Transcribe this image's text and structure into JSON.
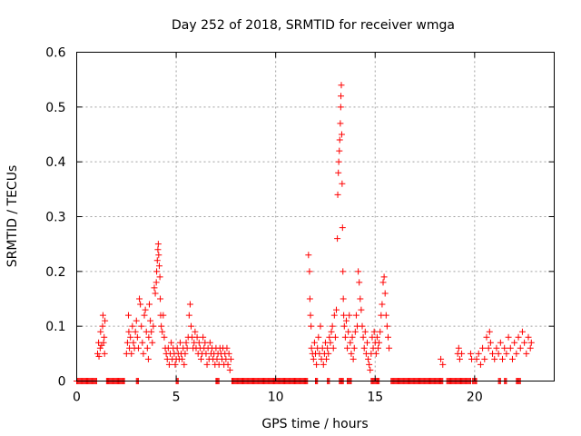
{
  "chart_data": {
    "type": "scatter",
    "title": "Day 252 of 2018, SRMTID for receiver wmga",
    "xlabel": "GPS time / hours",
    "ylabel": "SRMTID / TECUs",
    "xlim": [
      0,
      24
    ],
    "ylim": [
      0,
      0.6
    ],
    "xticks": [
      0,
      5,
      10,
      15,
      20
    ],
    "yticks": [
      0,
      0.1,
      0.2,
      0.3,
      0.4,
      0.5,
      0.6
    ],
    "xtick_labels": [
      "0",
      "5",
      "10",
      "15",
      "20"
    ],
    "ytick_labels": [
      "0",
      "0.1",
      "0.2",
      "0.3",
      "0.4",
      "0.5",
      "0.6"
    ],
    "grid": true,
    "marker": "+",
    "color": "#ff0000",
    "series": [
      {
        "name": "SRMTID",
        "zero_segments": [
          [
            0.0,
            1.0
          ],
          [
            1.5,
            2.4
          ],
          [
            3.0,
            3.1
          ],
          [
            5.0,
            5.1
          ],
          [
            7.0,
            7.15
          ],
          [
            7.8,
            11.6
          ],
          [
            12.0,
            12.1
          ],
          [
            12.6,
            12.7
          ],
          [
            13.2,
            13.4
          ],
          [
            13.6,
            13.8
          ],
          [
            14.8,
            15.2
          ],
          [
            15.8,
            18.4
          ],
          [
            18.6,
            19.8
          ],
          [
            19.9,
            20.1
          ],
          [
            21.2,
            21.3
          ],
          [
            21.5,
            21.6
          ],
          [
            22.1,
            22.3
          ]
        ],
        "points": [
          [
            1.05,
            0.05
          ],
          [
            1.1,
            0.07
          ],
          [
            1.12,
            0.045
          ],
          [
            1.18,
            0.06
          ],
          [
            1.2,
            0.09
          ],
          [
            1.25,
            0.065
          ],
          [
            1.3,
            0.1
          ],
          [
            1.32,
            0.12
          ],
          [
            1.35,
            0.07
          ],
          [
            1.38,
            0.08
          ],
          [
            1.4,
            0.05
          ],
          [
            1.42,
            0.11
          ],
          [
            2.5,
            0.05
          ],
          [
            2.55,
            0.07
          ],
          [
            2.6,
            0.12
          ],
          [
            2.62,
            0.09
          ],
          [
            2.65,
            0.06
          ],
          [
            2.7,
            0.08
          ],
          [
            2.75,
            0.05
          ],
          [
            2.8,
            0.1
          ],
          [
            2.85,
            0.07
          ],
          [
            2.9,
            0.06
          ],
          [
            2.95,
            0.09
          ],
          [
            3.0,
            0.11
          ],
          [
            3.05,
            0.08
          ],
          [
            3.1,
            0.06
          ],
          [
            3.15,
            0.15
          ],
          [
            3.2,
            0.14
          ],
          [
            3.25,
            0.1
          ],
          [
            3.3,
            0.07
          ],
          [
            3.35,
            0.05
          ],
          [
            3.4,
            0.12
          ],
          [
            3.45,
            0.13
          ],
          [
            3.5,
            0.09
          ],
          [
            3.55,
            0.06
          ],
          [
            3.6,
            0.04
          ],
          [
            3.62,
            0.08
          ],
          [
            3.65,
            0.14
          ],
          [
            3.7,
            0.11
          ],
          [
            3.75,
            0.09
          ],
          [
            3.8,
            0.07
          ],
          [
            3.85,
            0.1
          ],
          [
            3.9,
            0.17
          ],
          [
            3.95,
            0.16
          ],
          [
            4.0,
            0.18
          ],
          [
            4.02,
            0.2
          ],
          [
            4.05,
            0.22
          ],
          [
            4.08,
            0.24
          ],
          [
            4.1,
            0.25
          ],
          [
            4.12,
            0.23
          ],
          [
            4.15,
            0.21
          ],
          [
            4.18,
            0.19
          ],
          [
            4.2,
            0.15
          ],
          [
            4.22,
            0.12
          ],
          [
            4.25,
            0.1
          ],
          [
            4.3,
            0.09
          ],
          [
            4.35,
            0.12
          ],
          [
            4.4,
            0.08
          ],
          [
            4.45,
            0.06
          ],
          [
            4.5,
            0.05
          ],
          [
            4.55,
            0.04
          ],
          [
            4.6,
            0.06
          ],
          [
            4.65,
            0.03
          ],
          [
            4.7,
            0.05
          ],
          [
            4.75,
            0.07
          ],
          [
            4.8,
            0.04
          ],
          [
            4.85,
            0.06
          ],
          [
            4.9,
            0.05
          ],
          [
            4.95,
            0.03
          ],
          [
            5.0,
            0.04
          ],
          [
            5.05,
            0.06
          ],
          [
            5.1,
            0.05
          ],
          [
            5.15,
            0.04
          ],
          [
            5.2,
            0.07
          ],
          [
            5.25,
            0.05
          ],
          [
            5.3,
            0.04
          ],
          [
            5.35,
            0.06
          ],
          [
            5.4,
            0.03
          ],
          [
            5.45,
            0.05
          ],
          [
            5.5,
            0.07
          ],
          [
            5.55,
            0.06
          ],
          [
            5.6,
            0.08
          ],
          [
            5.65,
            0.12
          ],
          [
            5.7,
            0.14
          ],
          [
            5.75,
            0.1
          ],
          [
            5.8,
            0.08
          ],
          [
            5.85,
            0.06
          ],
          [
            5.9,
            0.07
          ],
          [
            5.95,
            0.09
          ],
          [
            6.0,
            0.06
          ],
          [
            6.05,
            0.08
          ],
          [
            6.1,
            0.05
          ],
          [
            6.15,
            0.07
          ],
          [
            6.2,
            0.06
          ],
          [
            6.25,
            0.04
          ],
          [
            6.3,
            0.05
          ],
          [
            6.35,
            0.08
          ],
          [
            6.4,
            0.06
          ],
          [
            6.45,
            0.07
          ],
          [
            6.5,
            0.05
          ],
          [
            6.55,
            0.03
          ],
          [
            6.6,
            0.06
          ],
          [
            6.65,
            0.04
          ],
          [
            6.7,
            0.07
          ],
          [
            6.75,
            0.05
          ],
          [
            6.8,
            0.06
          ],
          [
            6.85,
            0.04
          ],
          [
            6.9,
            0.05
          ],
          [
            6.95,
            0.03
          ],
          [
            7.0,
            0.06
          ],
          [
            7.05,
            0.04
          ],
          [
            7.1,
            0.05
          ],
          [
            7.15,
            0.03
          ],
          [
            7.2,
            0.06
          ],
          [
            7.25,
            0.05
          ],
          [
            7.3,
            0.04
          ],
          [
            7.35,
            0.06
          ],
          [
            7.4,
            0.03
          ],
          [
            7.45,
            0.05
          ],
          [
            7.5,
            0.04
          ],
          [
            7.55,
            0.06
          ],
          [
            7.6,
            0.03
          ],
          [
            7.65,
            0.05
          ],
          [
            7.7,
            0.02
          ],
          [
            7.75,
            0.04
          ],
          [
            11.65,
            0.23
          ],
          [
            11.7,
            0.2
          ],
          [
            11.72,
            0.15
          ],
          [
            11.75,
            0.12
          ],
          [
            11.78,
            0.1
          ],
          [
            11.8,
            0.06
          ],
          [
            11.85,
            0.05
          ],
          [
            11.9,
            0.04
          ],
          [
            11.95,
            0.07
          ],
          [
            12.0,
            0.05
          ],
          [
            12.05,
            0.03
          ],
          [
            12.1,
            0.06
          ],
          [
            12.15,
            0.08
          ],
          [
            12.2,
            0.05
          ],
          [
            12.25,
            0.1
          ],
          [
            12.3,
            0.04
          ],
          [
            12.35,
            0.06
          ],
          [
            12.4,
            0.03
          ],
          [
            12.45,
            0.05
          ],
          [
            12.5,
            0.07
          ],
          [
            12.55,
            0.04
          ],
          [
            12.6,
            0.06
          ],
          [
            12.65,
            0.05
          ],
          [
            12.7,
            0.08
          ],
          [
            12.75,
            0.07
          ],
          [
            12.8,
            0.09
          ],
          [
            12.85,
            0.1
          ],
          [
            12.9,
            0.06
          ],
          [
            12.95,
            0.12
          ],
          [
            13.0,
            0.08
          ],
          [
            13.05,
            0.13
          ],
          [
            13.1,
            0.26
          ],
          [
            13.12,
            0.34
          ],
          [
            13.15,
            0.38
          ],
          [
            13.17,
            0.4
          ],
          [
            13.2,
            0.42
          ],
          [
            13.22,
            0.44
          ],
          [
            13.25,
            0.47
          ],
          [
            13.27,
            0.5
          ],
          [
            13.28,
            0.52
          ],
          [
            13.3,
            0.54
          ],
          [
            13.32,
            0.45
          ],
          [
            13.34,
            0.36
          ],
          [
            13.36,
            0.28
          ],
          [
            13.38,
            0.2
          ],
          [
            13.4,
            0.15
          ],
          [
            13.42,
            0.12
          ],
          [
            13.45,
            0.1
          ],
          [
            13.5,
            0.08
          ],
          [
            13.55,
            0.11
          ],
          [
            13.6,
            0.06
          ],
          [
            13.65,
            0.09
          ],
          [
            13.7,
            0.12
          ],
          [
            13.75,
            0.07
          ],
          [
            13.8,
            0.05
          ],
          [
            13.85,
            0.08
          ],
          [
            13.9,
            0.04
          ],
          [
            13.95,
            0.06
          ],
          [
            14.0,
            0.09
          ],
          [
            14.05,
            0.12
          ],
          [
            14.1,
            0.1
          ],
          [
            14.15,
            0.2
          ],
          [
            14.2,
            0.18
          ],
          [
            14.25,
            0.15
          ],
          [
            14.3,
            0.13
          ],
          [
            14.35,
            0.1
          ],
          [
            14.4,
            0.08
          ],
          [
            14.45,
            0.06
          ],
          [
            14.5,
            0.09
          ],
          [
            14.55,
            0.05
          ],
          [
            14.6,
            0.07
          ],
          [
            14.65,
            0.04
          ],
          [
            14.7,
            0.03
          ],
          [
            14.75,
            0.02
          ],
          [
            14.8,
            0.05
          ],
          [
            14.85,
            0.08
          ],
          [
            14.9,
            0.06
          ],
          [
            14.95,
            0.09
          ],
          [
            15.0,
            0.07
          ],
          [
            15.05,
            0.05
          ],
          [
            15.1,
            0.08
          ],
          [
            15.15,
            0.06
          ],
          [
            15.2,
            0.07
          ],
          [
            15.25,
            0.09
          ],
          [
            15.3,
            0.12
          ],
          [
            15.35,
            0.14
          ],
          [
            15.4,
            0.18
          ],
          [
            15.45,
            0.19
          ],
          [
            15.5,
            0.16
          ],
          [
            15.55,
            0.12
          ],
          [
            15.6,
            0.1
          ],
          [
            15.65,
            0.08
          ],
          [
            15.7,
            0.06
          ],
          [
            18.3,
            0.04
          ],
          [
            18.4,
            0.03
          ],
          [
            19.15,
            0.05
          ],
          [
            19.2,
            0.06
          ],
          [
            19.25,
            0.04
          ],
          [
            19.35,
            0.05
          ],
          [
            19.8,
            0.05
          ],
          [
            19.85,
            0.04
          ],
          [
            20.1,
            0.04
          ],
          [
            20.2,
            0.05
          ],
          [
            20.3,
            0.03
          ],
          [
            20.4,
            0.06
          ],
          [
            20.5,
            0.04
          ],
          [
            20.6,
            0.08
          ],
          [
            20.7,
            0.06
          ],
          [
            20.75,
            0.09
          ],
          [
            20.8,
            0.07
          ],
          [
            20.9,
            0.05
          ],
          [
            21.0,
            0.04
          ],
          [
            21.1,
            0.06
          ],
          [
            21.2,
            0.05
          ],
          [
            21.3,
            0.07
          ],
          [
            21.4,
            0.04
          ],
          [
            21.5,
            0.06
          ],
          [
            21.6,
            0.05
          ],
          [
            21.7,
            0.08
          ],
          [
            21.8,
            0.06
          ],
          [
            21.9,
            0.04
          ],
          [
            22.0,
            0.07
          ],
          [
            22.1,
            0.05
          ],
          [
            22.2,
            0.08
          ],
          [
            22.3,
            0.06
          ],
          [
            22.4,
            0.09
          ],
          [
            22.5,
            0.07
          ],
          [
            22.6,
            0.05
          ],
          [
            22.7,
            0.08
          ],
          [
            22.8,
            0.06
          ],
          [
            22.85,
            0.07
          ]
        ]
      }
    ]
  }
}
